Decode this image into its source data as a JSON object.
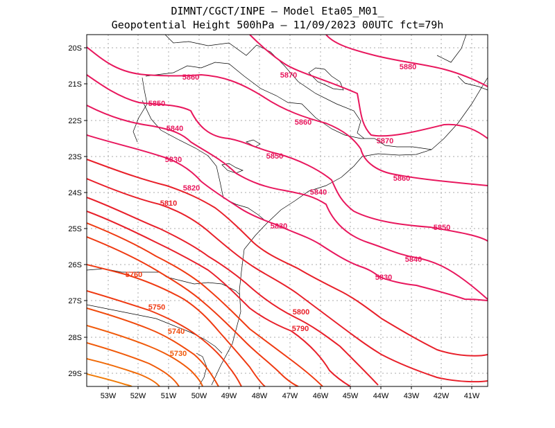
{
  "header": {
    "line1": "DIMNT/CGCT/INPE –  Model Eta05_M01_",
    "line2": "Geopotential Height 500hPa –  11/09/2023 00UTC fct=79h"
  },
  "axes": {
    "lat_labels": [
      "20S",
      "21S",
      "22S",
      "23S",
      "24S",
      "25S",
      "26S",
      "27S",
      "28S",
      "29S"
    ],
    "lon_labels": [
      "53W",
      "52W",
      "51W",
      "50W",
      "49W",
      "48W",
      "47W",
      "46W",
      "45W",
      "44W",
      "43W",
      "42W",
      "41W"
    ]
  },
  "colors": {
    "high": "#e8175d",
    "mid": "#e8202a",
    "low": "#f05a0a",
    "grid": "#aaaaaa",
    "coast": "#000000"
  },
  "contour_labels": [
    {
      "text": "5860",
      "color": "#e8175d"
    },
    {
      "text": "5870",
      "color": "#e8175d"
    },
    {
      "text": "5880",
      "color": "#e8175d"
    },
    {
      "text": "5850",
      "color": "#e8175d"
    },
    {
      "text": "5860",
      "color": "#e8175d"
    },
    {
      "text": "5840",
      "color": "#e8175d"
    },
    {
      "text": "5870",
      "color": "#e8175d"
    },
    {
      "text": "5830",
      "color": "#e8175d"
    },
    {
      "text": "5850",
      "color": "#e8175d"
    },
    {
      "text": "5860",
      "color": "#e8175d"
    },
    {
      "text": "5820",
      "color": "#e8175d"
    },
    {
      "text": "5840",
      "color": "#e8175d"
    },
    {
      "text": "5810",
      "color": "#e8202a"
    },
    {
      "text": "5850",
      "color": "#e8175d"
    },
    {
      "text": "5830",
      "color": "#e8175d"
    },
    {
      "text": "5840",
      "color": "#e8175d"
    },
    {
      "text": "5760",
      "color": "#ef3a12"
    },
    {
      "text": "5830",
      "color": "#e8175d"
    },
    {
      "text": "5750",
      "color": "#ef3a12"
    },
    {
      "text": "5800",
      "color": "#e8202a"
    },
    {
      "text": "5790",
      "color": "#e8202a"
    },
    {
      "text": "5740",
      "color": "#f04a0c"
    },
    {
      "text": "5730",
      "color": "#f05a0a"
    }
  ]
}
